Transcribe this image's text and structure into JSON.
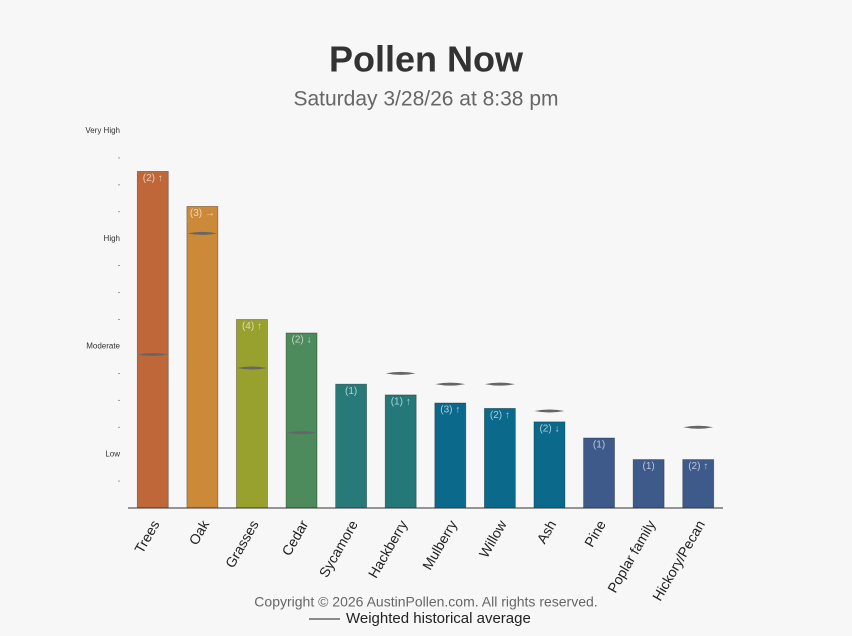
{
  "chart_data": {
    "type": "bar",
    "title": "Pollen Now",
    "subtitle": "Saturday 3/28/26 at 8:38 pm",
    "categories": [
      "Trees",
      "Oak",
      "Grasses",
      "Cedar",
      "Sycamore",
      "Hackberry",
      "Mulberry",
      "Willow",
      "Ash",
      "Pine",
      "Poplar family",
      "Hickory/Pecan"
    ],
    "values": [
      12.5,
      11.2,
      7.0,
      6.5,
      4.6,
      4.2,
      3.9,
      3.7,
      3.2,
      2.6,
      1.8,
      1.8
    ],
    "bar_labels": [
      "(2) ↑",
      "(3) →",
      "(4) ↑",
      "(2) ↓",
      "(1)",
      "(1) ↑",
      "(3) ↑",
      "(2) ↑",
      "(2) ↓",
      "(1)",
      "(1)",
      "(2) ↑"
    ],
    "colors": [
      "#c0673a",
      "#cc8a38",
      "#98a02e",
      "#4d8a5c",
      "#277a78",
      "#247878",
      "#0b6a8c",
      "#0b6a8c",
      "#0b6a8c",
      "#3e5a8a",
      "#3e5a8a",
      "#3e5a8a"
    ],
    "historical": {
      "name": "Weighted historical average",
      "color": "#666666",
      "values": [
        5.7,
        10.2,
        5.2,
        2.8,
        null,
        5.0,
        4.6,
        4.6,
        3.6,
        null,
        null,
        3.0
      ]
    },
    "ylim": [
      0,
      14
    ],
    "yticks": [
      {
        "value": 2,
        "label": "Low"
      },
      {
        "value": 6,
        "label": "Moderate"
      },
      {
        "value": 10,
        "label": "High"
      },
      {
        "value": 14,
        "label": "Very High"
      }
    ],
    "yminorticks": [
      1,
      3,
      4,
      5,
      7,
      8,
      9,
      11,
      12,
      13
    ],
    "footer": "Copyright © 2026 AustinPollen.com.  All rights reserved."
  }
}
